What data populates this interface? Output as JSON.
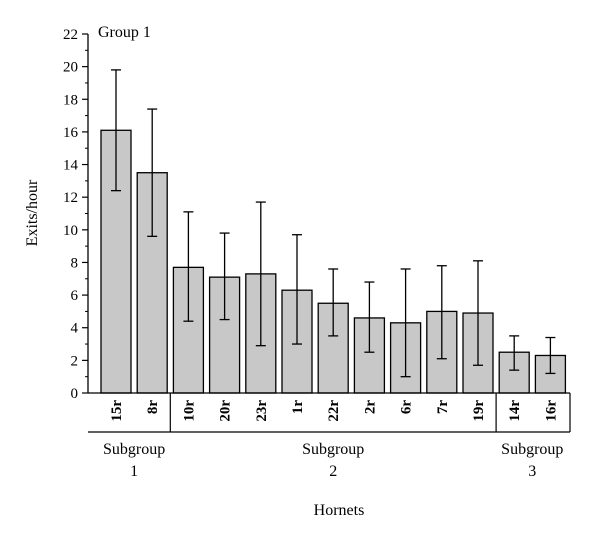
{
  "chart_data": {
    "type": "bar",
    "title": "",
    "annotation": "Group 1",
    "xlabel": "Hornets",
    "ylabel": "Exits/hour",
    "ylim": [
      0,
      22
    ],
    "y_ticks": [
      0,
      2,
      4,
      6,
      8,
      10,
      12,
      14,
      16,
      18,
      20,
      22
    ],
    "grid": false,
    "categories": [
      "15r",
      "8r",
      "10r",
      "20r",
      "23r",
      "1r",
      "22r",
      "2r",
      "6r",
      "7r",
      "19r",
      "14r",
      "16r"
    ],
    "values": [
      16.1,
      13.5,
      7.7,
      7.1,
      7.3,
      6.3,
      5.5,
      4.6,
      4.3,
      5.0,
      4.9,
      2.5,
      2.3
    ],
    "error_upper": [
      19.8,
      17.4,
      11.1,
      9.8,
      11.7,
      9.7,
      7.6,
      6.8,
      7.6,
      7.8,
      8.1,
      3.5,
      3.4
    ],
    "error_lower": [
      12.4,
      9.6,
      4.4,
      4.5,
      2.9,
      3.0,
      3.5,
      2.5,
      1.0,
      2.1,
      1.7,
      1.4,
      1.2
    ],
    "bar_color": "#c8c8c8",
    "subgroups": [
      {
        "line1": "Subgroup",
        "line2": "1",
        "start": 0,
        "end": 1
      },
      {
        "line1": "Subgroup",
        "line2": "2",
        "start": 2,
        "end": 10
      },
      {
        "line1": "Subgroup",
        "line2": "3",
        "start": 11,
        "end": 12
      }
    ]
  }
}
